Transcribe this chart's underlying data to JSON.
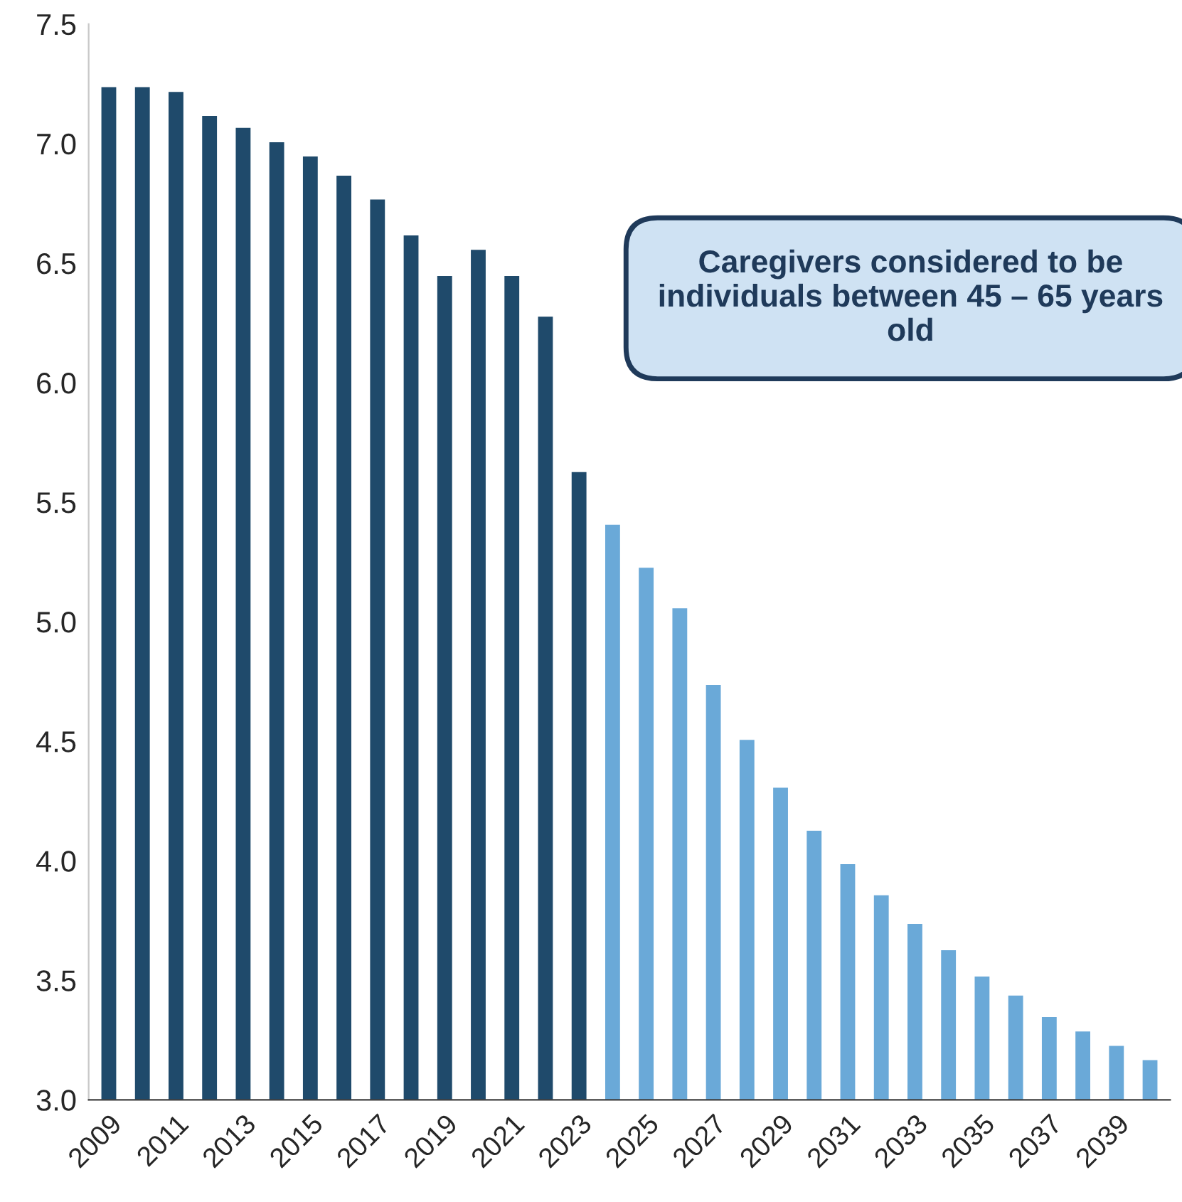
{
  "chart_data": {
    "type": "bar",
    "categories": [
      "2009",
      null,
      "2011",
      null,
      "2013",
      null,
      "2015",
      null,
      "2017",
      null,
      "2019",
      null,
      "2021",
      null,
      "2023",
      null,
      "2025",
      null,
      "2027",
      null,
      "2029",
      null,
      "2031",
      null,
      "2033",
      null,
      "2035",
      null,
      "2037",
      null,
      "2039",
      null
    ],
    "values": [
      7.24,
      7.24,
      7.22,
      7.12,
      7.07,
      7.01,
      6.95,
      6.87,
      6.77,
      6.62,
      6.45,
      6.56,
      6.45,
      6.28,
      5.63,
      5.41,
      5.23,
      5.06,
      4.74,
      4.51,
      4.31,
      4.13,
      3.99,
      3.86,
      3.74,
      3.63,
      3.52,
      3.44,
      3.35,
      3.29,
      3.23,
      3.17
    ],
    "colors": [
      "#1f4a6b",
      "#1f4a6b",
      "#1f4a6b",
      "#1f4a6b",
      "#1f4a6b",
      "#1f4a6b",
      "#1f4a6b",
      "#1f4a6b",
      "#1f4a6b",
      "#1f4a6b",
      "#1f4a6b",
      "#1f4a6b",
      "#1f4a6b",
      "#1f4a6b",
      "#1f4a6b",
      "#6aa9d8",
      "#6aa9d8",
      "#6aa9d8",
      "#6aa9d8",
      "#6aa9d8",
      "#6aa9d8",
      "#6aa9d8",
      "#6aa9d8",
      "#6aa9d8",
      "#6aa9d8",
      "#6aa9d8",
      "#6aa9d8",
      "#6aa9d8",
      "#6aa9d8",
      "#6aa9d8",
      "#6aa9d8",
      "#6aa9d8"
    ],
    "ylim": [
      3.0,
      7.5
    ],
    "yticks": [
      {
        "value": 3.0,
        "label": "3.0"
      },
      {
        "value": 3.5,
        "label": "3.5"
      },
      {
        "value": 4.0,
        "label": "4.0"
      },
      {
        "value": 4.5,
        "label": "4.5"
      },
      {
        "value": 5.0,
        "label": "5.0"
      },
      {
        "value": 5.5,
        "label": "5.5"
      },
      {
        "value": 6.0,
        "label": "6.0"
      },
      {
        "value": 6.5,
        "label": "6.5"
      },
      {
        "value": 7.0,
        "label": "7.0"
      },
      {
        "value": 7.5,
        "label": "7.5"
      }
    ],
    "annotations": [
      "Caregivers considered to be individuals between 45 – 65 years old"
    ],
    "grid": false,
    "legend": false
  }
}
